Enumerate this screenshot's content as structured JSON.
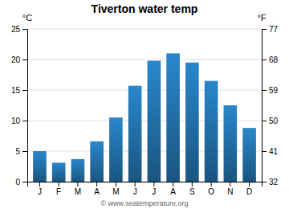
{
  "chart_data": {
    "type": "bar",
    "title": "Tiverton water temp",
    "categories": [
      "J",
      "F",
      "M",
      "A",
      "M",
      "J",
      "J",
      "A",
      "S",
      "O",
      "N",
      "D"
    ],
    "values": [
      5.0,
      3.1,
      3.7,
      6.6,
      10.5,
      15.7,
      19.8,
      21.0,
      19.5,
      16.5,
      12.5,
      8.8
    ],
    "color": "#1a5580",
    "ylabel": "°C",
    "y2label": "°F",
    "ylim": [
      0,
      25
    ],
    "yticks": [
      0,
      5,
      10,
      15,
      20,
      25
    ],
    "y2lim": [
      32,
      77
    ],
    "y2ticks": [
      32,
      41,
      50,
      59,
      68,
      77
    ],
    "grid": true,
    "annotations": [
      "© www.seatemperature.org"
    ]
  }
}
